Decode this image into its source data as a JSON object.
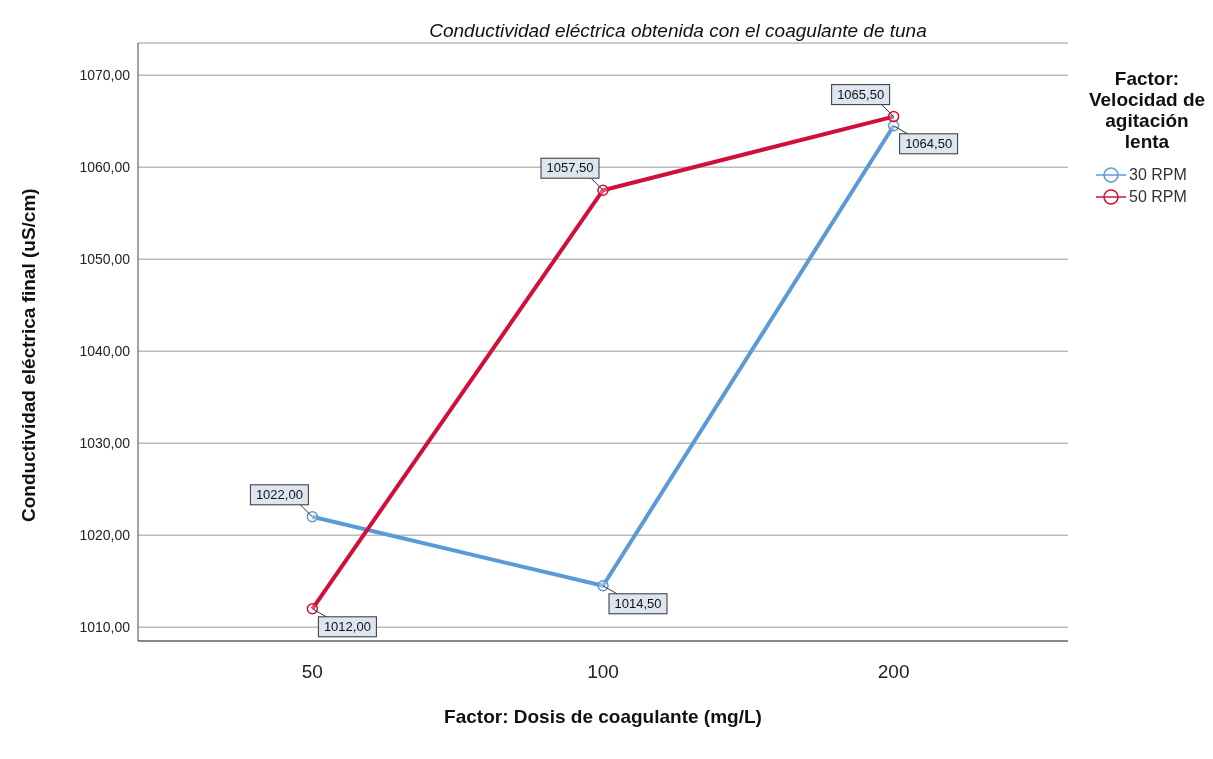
{
  "chart_data": {
    "type": "line",
    "title": "Conductividad eléctrica obtenida con el coagulante de tuna",
    "xlabel": "Factor: Dosis de coagulante (mg/L)",
    "ylabel": "Conductividad eléctrica final (uS/cm)",
    "legend_title": "Factor: Velocidad de agitación lenta",
    "categories": [
      "50",
      "100",
      "200"
    ],
    "series": [
      {
        "name": "30 RPM",
        "color": "#5b9bd5",
        "values": [
          1022,
          1014.5,
          1064.5
        ],
        "value_labels": [
          "1022,00",
          "1014,50",
          "1064,50"
        ]
      },
      {
        "name": "50 RPM",
        "color": "#d0103a",
        "values": [
          1012,
          1057.5,
          1065.5
        ],
        "value_labels": [
          "1012,00",
          "1057,50",
          "1065,50"
        ]
      }
    ],
    "ylim": [
      1008.5,
      1073.5
    ],
    "yticks": [
      {
        "value": 1010,
        "label": "1010,00"
      },
      {
        "value": 1020,
        "label": "1020,00"
      },
      {
        "value": 1030,
        "label": "1030,00"
      },
      {
        "value": 1040,
        "label": "1040,00"
      },
      {
        "value": 1050,
        "label": "1050,00"
      },
      {
        "value": 1060,
        "label": "1060,00"
      },
      {
        "value": 1070,
        "label": "1070,00"
      }
    ],
    "grid": "y",
    "legend": "top right",
    "marker": "circle",
    "line_style": "solid"
  }
}
